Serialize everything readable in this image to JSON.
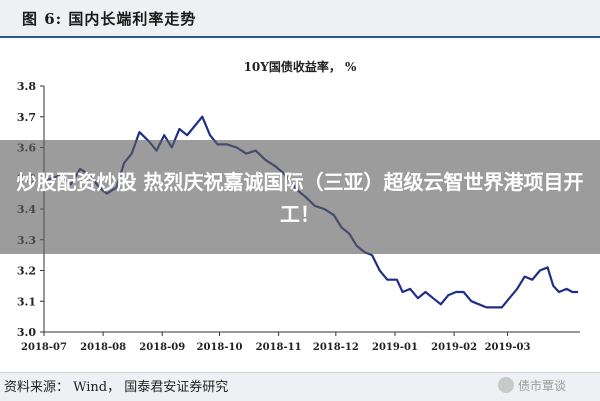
{
  "figure": {
    "title": "图 6:   国内长端利率走势",
    "source": "资料来源：  Wind，  国泰君安证券研究"
  },
  "overlay": {
    "text": "炒股配资炒股 热烈庆祝嘉诚国际（三亚）超级云智世界港项目开工！"
  },
  "watermark": {
    "text": "债市覃谈"
  },
  "colors": {
    "line": "#1f2f86",
    "header_bg": "#eef0f3",
    "rule": "#2f5597"
  },
  "chart_data": {
    "type": "line",
    "title": "10Y国债收益率，  %",
    "ylim": [
      3.0,
      3.8
    ],
    "yticks": [
      "3.0",
      "3.1",
      "3.2",
      "3.3",
      "3.4",
      "3.5",
      "3.6",
      "3.7",
      "3.8"
    ],
    "xticks": [
      "2018-07",
      "2018-08",
      "2018-09",
      "2018-10",
      "2018-11",
      "2018-12",
      "2019-01",
      "2019-02",
      "2019-03"
    ],
    "grid": false,
    "series": [
      {
        "values": [
          [
            "2018-07-01",
            3.49
          ],
          [
            "2018-07-05",
            3.5
          ],
          [
            "2018-07-10",
            3.51
          ],
          [
            "2018-07-15",
            3.48
          ],
          [
            "2018-07-20",
            3.53
          ],
          [
            "2018-07-25",
            3.51
          ],
          [
            "2018-07-30",
            3.47
          ],
          [
            "2018-08-03",
            3.45
          ],
          [
            "2018-08-08",
            3.47
          ],
          [
            "2018-08-12",
            3.55
          ],
          [
            "2018-08-16",
            3.58
          ],
          [
            "2018-08-20",
            3.65
          ],
          [
            "2018-08-25",
            3.62
          ],
          [
            "2018-08-29",
            3.59
          ],
          [
            "2018-09-02",
            3.64
          ],
          [
            "2018-09-06",
            3.6
          ],
          [
            "2018-09-10",
            3.66
          ],
          [
            "2018-09-14",
            3.64
          ],
          [
            "2018-09-18",
            3.67
          ],
          [
            "2018-09-22",
            3.7
          ],
          [
            "2018-09-26",
            3.64
          ],
          [
            "2018-09-30",
            3.61
          ],
          [
            "2018-10-05",
            3.61
          ],
          [
            "2018-10-10",
            3.6
          ],
          [
            "2018-10-15",
            3.58
          ],
          [
            "2018-10-20",
            3.59
          ],
          [
            "2018-10-25",
            3.56
          ],
          [
            "2018-10-30",
            3.54
          ],
          [
            "2018-11-03",
            3.52
          ],
          [
            "2018-11-07",
            3.49
          ],
          [
            "2018-11-11",
            3.46
          ],
          [
            "2018-11-15",
            3.44
          ],
          [
            "2018-11-20",
            3.41
          ],
          [
            "2018-11-25",
            3.4
          ],
          [
            "2018-11-30",
            3.38
          ],
          [
            "2018-12-04",
            3.34
          ],
          [
            "2018-12-08",
            3.32
          ],
          [
            "2018-12-12",
            3.28
          ],
          [
            "2018-12-16",
            3.26
          ],
          [
            "2018-12-20",
            3.25
          ],
          [
            "2018-12-24",
            3.2
          ],
          [
            "2018-12-28",
            3.17
          ],
          [
            "2019-01-02",
            3.17
          ],
          [
            "2019-01-05",
            3.13
          ],
          [
            "2019-01-09",
            3.14
          ],
          [
            "2019-01-13",
            3.11
          ],
          [
            "2019-01-17",
            3.13
          ],
          [
            "2019-01-21",
            3.11
          ],
          [
            "2019-01-25",
            3.09
          ],
          [
            "2019-01-29",
            3.12
          ],
          [
            "2019-02-02",
            3.13
          ],
          [
            "2019-02-06",
            3.13
          ],
          [
            "2019-02-10",
            3.1
          ],
          [
            "2019-02-14",
            3.09
          ],
          [
            "2019-02-18",
            3.08
          ],
          [
            "2019-02-22",
            3.08
          ],
          [
            "2019-02-26",
            3.08
          ],
          [
            "2019-03-02",
            3.11
          ],
          [
            "2019-03-06",
            3.14
          ],
          [
            "2019-03-10",
            3.18
          ],
          [
            "2019-03-14",
            3.17
          ],
          [
            "2019-03-18",
            3.2
          ],
          [
            "2019-03-22",
            3.21
          ],
          [
            "2019-03-25",
            3.15
          ],
          [
            "2019-03-28",
            3.13
          ],
          [
            "2019-04-01",
            3.14
          ],
          [
            "2019-04-04",
            3.13
          ],
          [
            "2019-04-07",
            3.13
          ]
        ]
      }
    ]
  }
}
